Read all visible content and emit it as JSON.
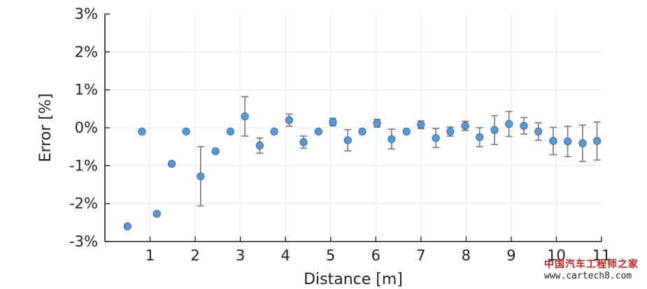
{
  "chart_data": {
    "type": "scatter",
    "title": "",
    "xlabel": "Distance [m]",
    "ylabel": "Error [%]",
    "xlim": [
      0,
      11
    ],
    "ylim": [
      -3,
      3
    ],
    "x_ticks": [
      1,
      2,
      3,
      4,
      5,
      6,
      7,
      8,
      9,
      10,
      11
    ],
    "y_ticks": [
      -3,
      -2,
      -1,
      0,
      1,
      2,
      3
    ],
    "y_tick_labels": [
      "-3%",
      "-2%",
      "-1%",
      "0%",
      "1%",
      "2%",
      "3%"
    ],
    "grid": true,
    "marker_color": "#4d9be6",
    "errorbar_color": "#777777",
    "points": [
      {
        "x": 0.5,
        "y": -2.6,
        "err": 0
      },
      {
        "x": 0.82,
        "y": -0.1,
        "err": 0
      },
      {
        "x": 1.15,
        "y": -2.27,
        "err": 0
      },
      {
        "x": 1.48,
        "y": -0.95,
        "err": 0
      },
      {
        "x": 1.8,
        "y": -0.1,
        "err": 0
      },
      {
        "x": 2.12,
        "y": -1.28,
        "err": 0.78
      },
      {
        "x": 2.45,
        "y": -0.62,
        "err": 0
      },
      {
        "x": 2.78,
        "y": -0.1,
        "err": 0
      },
      {
        "x": 3.1,
        "y": 0.3,
        "err": 0.52
      },
      {
        "x": 3.43,
        "y": -0.47,
        "err": 0.2
      },
      {
        "x": 3.75,
        "y": -0.1,
        "err": 0
      },
      {
        "x": 4.08,
        "y": 0.2,
        "err": 0.16
      },
      {
        "x": 4.4,
        "y": -0.38,
        "err": 0.16
      },
      {
        "x": 4.73,
        "y": -0.1,
        "err": 0
      },
      {
        "x": 5.05,
        "y": 0.15,
        "err": 0.1
      },
      {
        "x": 5.38,
        "y": -0.33,
        "err": 0.28
      },
      {
        "x": 5.7,
        "y": -0.1,
        "err": 0
      },
      {
        "x": 6.03,
        "y": 0.12,
        "err": 0.1
      },
      {
        "x": 6.35,
        "y": -0.3,
        "err": 0.26
      },
      {
        "x": 6.68,
        "y": -0.1,
        "err": 0
      },
      {
        "x": 7.0,
        "y": 0.08,
        "err": 0.1
      },
      {
        "x": 7.33,
        "y": -0.27,
        "err": 0.25
      },
      {
        "x": 7.65,
        "y": -0.1,
        "err": 0.12
      },
      {
        "x": 7.98,
        "y": 0.05,
        "err": 0.12
      },
      {
        "x": 8.3,
        "y": -0.25,
        "err": 0.25
      },
      {
        "x": 8.63,
        "y": -0.06,
        "err": 0.38
      },
      {
        "x": 8.95,
        "y": 0.1,
        "err": 0.33
      },
      {
        "x": 9.28,
        "y": 0.05,
        "err": 0.22
      },
      {
        "x": 9.6,
        "y": -0.1,
        "err": 0.23
      },
      {
        "x": 9.93,
        "y": -0.35,
        "err": 0.36
      },
      {
        "x": 10.25,
        "y": -0.36,
        "err": 0.4
      },
      {
        "x": 10.58,
        "y": -0.41,
        "err": 0.48
      },
      {
        "x": 10.9,
        "y": -0.35,
        "err": 0.5
      }
    ]
  },
  "watermark": {
    "line1": "中国汽车工程师之家",
    "line2": "www.cartech8.com"
  }
}
